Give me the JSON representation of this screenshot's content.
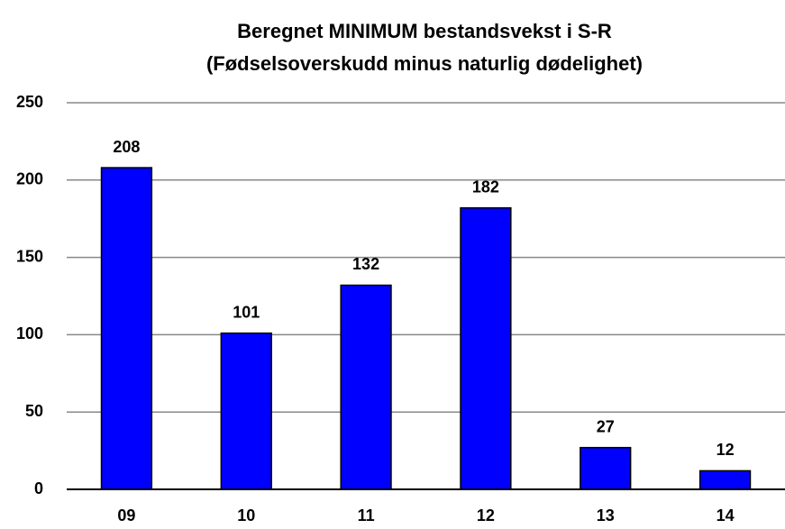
{
  "chart_data": {
    "type": "bar",
    "title": "Beregnet MINIMUM  bestandsvekst i S-R",
    "subtitle": "(Fødselsoverskudd minus naturlig dødelighet)",
    "categories": [
      "09",
      "10",
      "11",
      "12",
      "13",
      "14"
    ],
    "values": [
      208,
      101,
      132,
      182,
      27,
      12
    ],
    "color": "#0000ff",
    "ylim": [
      0,
      250
    ],
    "yticks": [
      0,
      50,
      100,
      150,
      200,
      250
    ],
    "grid": true
  }
}
